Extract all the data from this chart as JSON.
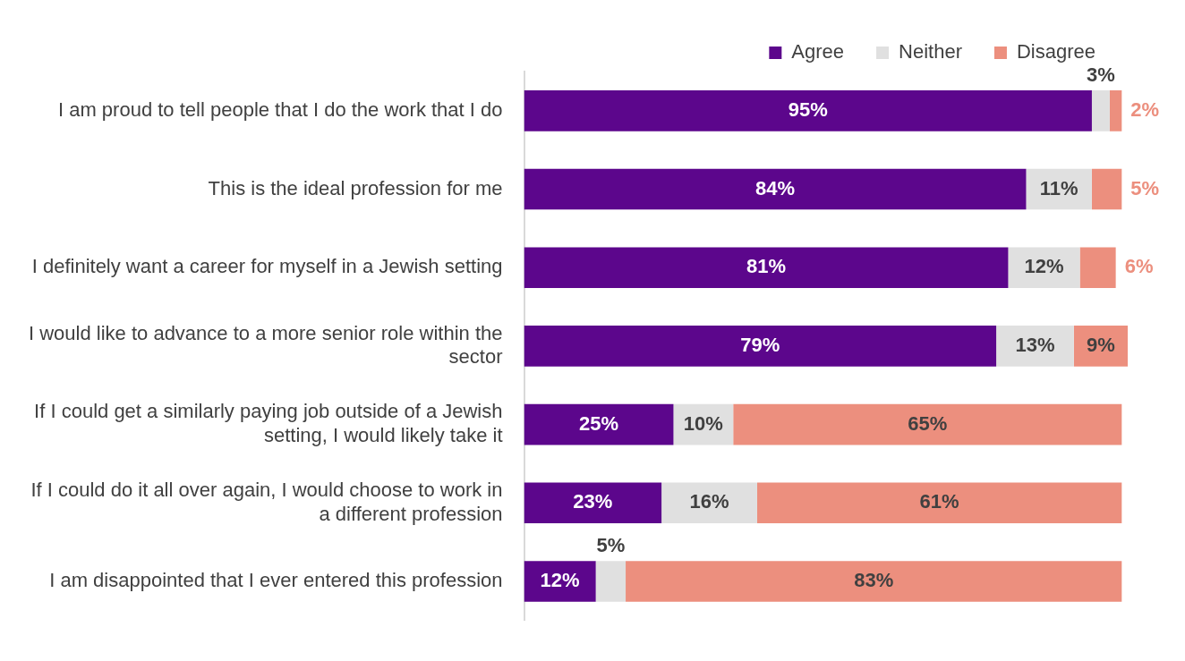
{
  "chart_data": {
    "type": "bar",
    "orientation": "horizontal",
    "stacked": true,
    "categories": [
      "I am proud to tell people that I do the work that I do",
      "This is the ideal profession for me",
      "I definitely want a career for myself in a Jewish setting",
      "I would like to advance to a more senior role within the sector",
      "If I could get a similarly paying job outside of a Jewish setting, I would likely take it",
      "If I could do it all over again, I would choose to work in a different profession",
      "I am disappointed that I ever entered this profession"
    ],
    "series": [
      {
        "name": "Agree",
        "color": "#5c068c",
        "values": [
          95,
          84,
          81,
          79,
          25,
          23,
          12
        ],
        "value_labels": [
          "95%",
          "84%",
          "81%",
          "79%",
          "25%",
          "23%",
          "12%"
        ]
      },
      {
        "name": "Neither",
        "color": "#e0e0e0",
        "values": [
          3,
          11,
          12,
          13,
          10,
          16,
          5
        ],
        "value_labels": [
          "3%",
          "11%",
          "12%",
          "13%",
          "10%",
          "16%",
          "5%"
        ]
      },
      {
        "name": "Disagree",
        "color": "#ec8f7e",
        "values": [
          2,
          5,
          6,
          9,
          65,
          61,
          83
        ],
        "value_labels": [
          "2%",
          "5%",
          "6%",
          "9%",
          "65%",
          "61%",
          "83%"
        ]
      }
    ],
    "xlim": [
      0,
      101
    ],
    "tick_labels": "y",
    "grid": false,
    "legend": "top right"
  }
}
